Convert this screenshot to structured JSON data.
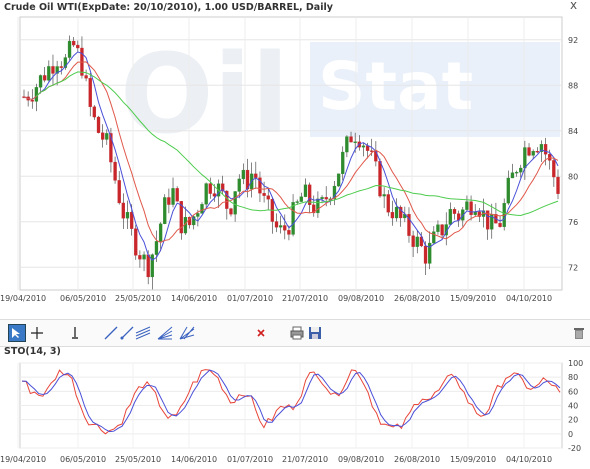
{
  "chart_title": "Crude Oil WTI(ExpDate: 20/10/2010), 1.00 USD/BARREL, Daily",
  "close_label": "x",
  "watermark": {
    "left": "Oil",
    "right": "Stat"
  },
  "price_chart": {
    "type": "candlestick",
    "ylim": [
      70,
      94
    ],
    "y_ticks": [
      "92",
      "88",
      "84",
      "80",
      "76",
      "72"
    ],
    "x_ticks": [
      "19/04/2010",
      "06/05/2010",
      "25/05/2010",
      "14/06/2010",
      "01/07/2010",
      "21/07/2010",
      "09/08/2010",
      "26/08/2010",
      "15/09/2010",
      "04/10/2010"
    ],
    "colors": {
      "up": "#2e8b2e",
      "down": "#c8262a",
      "ma_fast": "#4a50d8",
      "ma_mid": "#e0584a",
      "ma_slow": "#4dcc4d"
    }
  },
  "toolbar": {
    "tools": [
      "pointer-tool-icon",
      "crosshair-tool-icon",
      "vertical-line-tool-icon",
      "line-tool-icon",
      "ray-tool-icon",
      "parallel-channel-tool-icon",
      "fibonacci-fan-tool-icon",
      "gann-fan-tool-icon",
      "delete-drawing-icon",
      "print-icon",
      "save-icon",
      "trash-icon"
    ]
  },
  "stochastic": {
    "label": "STO(14, 3)",
    "ylim": [
      -20,
      100
    ],
    "y_ticks": [
      "100",
      "80",
      "60",
      "40",
      "20",
      "0",
      "-20"
    ],
    "x_ticks": [
      "19/04/2010",
      "06/05/2010",
      "25/05/2010",
      "14/06/2010",
      "01/07/2010",
      "21/07/2010",
      "09/08/2010",
      "26/08/2010",
      "15/09/2010",
      "04/10/2010"
    ],
    "colors": {
      "k": "#e8463a",
      "d": "#4a50d8"
    }
  }
}
